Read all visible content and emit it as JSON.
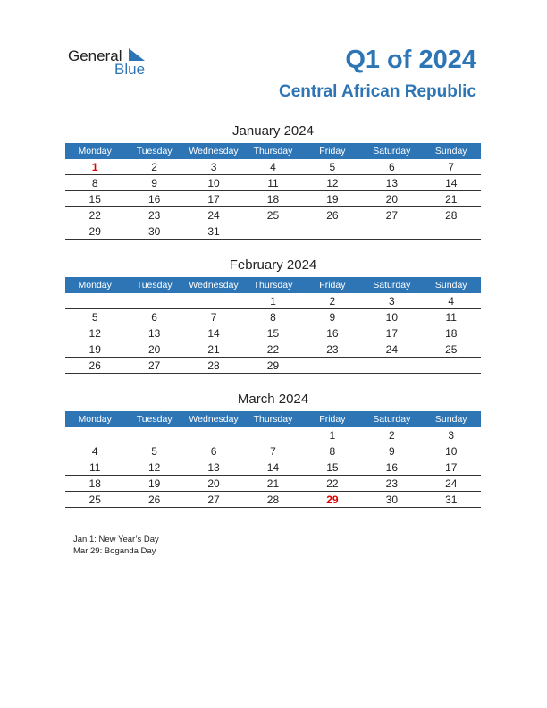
{
  "logo": {
    "general": "General",
    "blue": "Blue"
  },
  "header": {
    "title": "Q1 of 2024",
    "country": "Central African Republic"
  },
  "weekdays": [
    "Monday",
    "Tuesday",
    "Wednesday",
    "Thursday",
    "Friday",
    "Saturday",
    "Sunday"
  ],
  "months": [
    {
      "title": "January 2024",
      "weeks": [
        [
          "1",
          "2",
          "3",
          "4",
          "5",
          "6",
          "7"
        ],
        [
          "8",
          "9",
          "10",
          "11",
          "12",
          "13",
          "14"
        ],
        [
          "15",
          "16",
          "17",
          "18",
          "19",
          "20",
          "21"
        ],
        [
          "22",
          "23",
          "24",
          "25",
          "26",
          "27",
          "28"
        ],
        [
          "29",
          "30",
          "31",
          "",
          "",
          "",
          ""
        ]
      ],
      "holidays": [
        "1"
      ]
    },
    {
      "title": "February 2024",
      "weeks": [
        [
          "",
          "",
          "",
          "1",
          "2",
          "3",
          "4"
        ],
        [
          "5",
          "6",
          "7",
          "8",
          "9",
          "10",
          "11"
        ],
        [
          "12",
          "13",
          "14",
          "15",
          "16",
          "17",
          "18"
        ],
        [
          "19",
          "20",
          "21",
          "22",
          "23",
          "24",
          "25"
        ],
        [
          "26",
          "27",
          "28",
          "29",
          "",
          "",
          ""
        ]
      ],
      "holidays": []
    },
    {
      "title": "March 2024",
      "weeks": [
        [
          "",
          "",
          "",
          "",
          "1",
          "2",
          "3"
        ],
        [
          "4",
          "5",
          "6",
          "7",
          "8",
          "9",
          "10"
        ],
        [
          "11",
          "12",
          "13",
          "14",
          "15",
          "16",
          "17"
        ],
        [
          "18",
          "19",
          "20",
          "21",
          "22",
          "23",
          "24"
        ],
        [
          "25",
          "26",
          "27",
          "28",
          "29",
          "30",
          "31"
        ]
      ],
      "holidays": [
        "29"
      ]
    }
  ],
  "notes": [
    "Jan 1: New Year’s Day",
    "Mar 29: Boganda Day"
  ],
  "colors": {
    "accent": "#2e75b6",
    "holiday": "#e00000"
  }
}
